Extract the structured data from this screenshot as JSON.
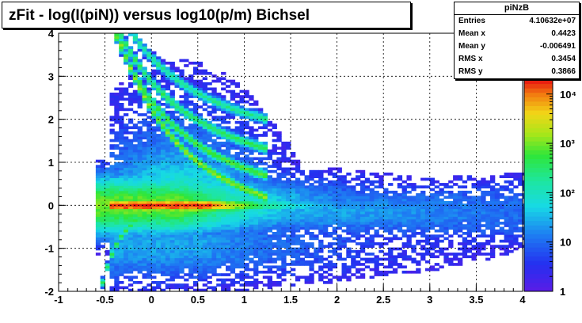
{
  "title": "zFit - log(I(piN)) versus log10(p/m) Bichsel",
  "stats": {
    "name": "piNzB",
    "rows": [
      {
        "key": "Entries",
        "value": "4.10632e+07"
      },
      {
        "key": "Mean x",
        "value": "0.4423"
      },
      {
        "key": "Mean y",
        "value": "-0.006491"
      },
      {
        "key": "RMS x",
        "value": "0.3454"
      },
      {
        "key": "RMS y",
        "value": "0.3866"
      }
    ]
  },
  "chart_data": {
    "type": "heatmap",
    "title": "zFit - log(I(piN)) versus log10(p/m) Bichsel",
    "xlim": [
      -1,
      4
    ],
    "ylim": [
      -2,
      4
    ],
    "x_ticks": [
      "-1",
      "-0.5",
      "0",
      "0.5",
      "1",
      "1.5",
      "2",
      "2.5",
      "3",
      "3.5",
      "4"
    ],
    "y_ticks": [
      "-2",
      "-1",
      "0",
      "1",
      "2",
      "3",
      "4"
    ],
    "grid": true,
    "color_scale": {
      "type": "log",
      "range": [
        1,
        20000
      ],
      "ticks": [
        "1",
        "10",
        "10²",
        "10³",
        "10⁴"
      ]
    },
    "stats_box": "top-right"
  }
}
